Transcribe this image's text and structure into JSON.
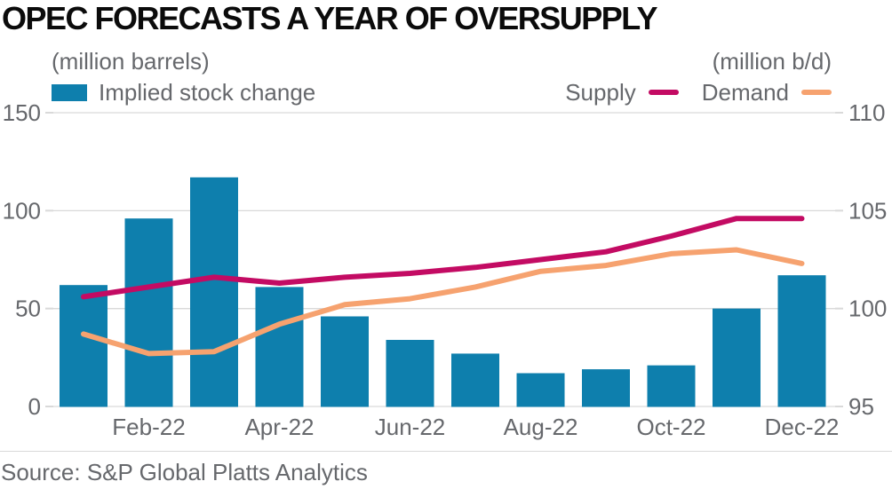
{
  "title": "OPEC FORECASTS A YEAR OF OVERSUPPLY",
  "source": "Source: S&P Global Platts Analytics",
  "legend": {
    "left_unit": "(million barrels)",
    "right_unit": "(million b/d)",
    "bar_label": "Implied stock change",
    "supply_label": "Supply",
    "demand_label": "Demand"
  },
  "colors": {
    "bar": "#0e7fad",
    "supply": "#c30b63",
    "demand": "#f6a26f",
    "grid": "#d9d9d9",
    "axis_text": "#66686c",
    "title_text": "#0b0b0b"
  },
  "chart_data": {
    "type": "combo-bar-line",
    "title": "OPEC FORECASTS A YEAR OF OVERSUPPLY",
    "categories": [
      "Jan-22",
      "Feb-22",
      "Mar-22",
      "Apr-22",
      "May-22",
      "Jun-22",
      "Jul-22",
      "Aug-22",
      "Sep-22",
      "Oct-22",
      "Nov-22",
      "Dec-22"
    ],
    "x_ticks": [
      {
        "i": 1,
        "label": "Feb-22"
      },
      {
        "i": 3,
        "label": "Apr-22"
      },
      {
        "i": 5,
        "label": "Jun-22"
      },
      {
        "i": 7,
        "label": "Aug-22"
      },
      {
        "i": 9,
        "label": "Oct-22"
      },
      {
        "i": 11,
        "label": "Dec-22"
      }
    ],
    "series": [
      {
        "name": "Implied stock change",
        "type": "bar",
        "axis": "left",
        "color_key": "bar",
        "values": [
          62,
          96,
          117,
          61,
          46,
          34,
          27,
          17,
          19,
          21,
          50,
          67
        ]
      },
      {
        "name": "Supply",
        "type": "line",
        "axis": "right",
        "color_key": "supply",
        "values": [
          100.6,
          101.1,
          101.6,
          101.3,
          101.6,
          101.8,
          102.1,
          102.5,
          102.9,
          103.7,
          104.6,
          104.6
        ]
      },
      {
        "name": "Demand",
        "type": "line",
        "axis": "right",
        "color_key": "demand",
        "values": [
          98.7,
          97.7,
          97.8,
          99.2,
          100.2,
          100.5,
          101.1,
          101.9,
          102.2,
          102.8,
          103.0,
          102.3
        ]
      }
    ],
    "left_axis": {
      "unit": "(million barrels)",
      "ticks": [
        0,
        50,
        100,
        150
      ],
      "range": [
        0,
        150
      ]
    },
    "right_axis": {
      "unit": "(million b/d)",
      "ticks": [
        95,
        100,
        105,
        110
      ],
      "range": [
        95,
        110
      ]
    },
    "grid": true,
    "legend_position": "top"
  }
}
